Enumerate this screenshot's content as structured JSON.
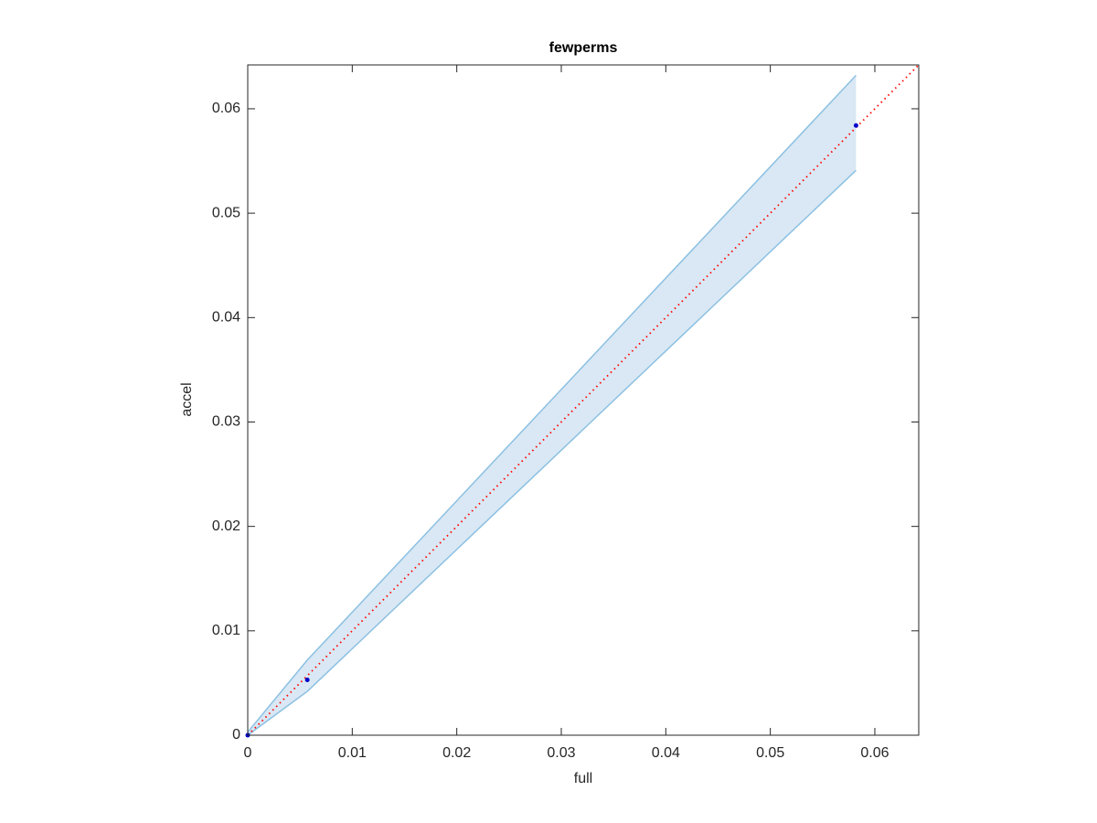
{
  "chart_data": {
    "type": "scatter",
    "title": "fewperms",
    "xlabel": "full",
    "ylabel": "accel",
    "x": [
      0,
      0.0057,
      0.0582
    ],
    "y": [
      0,
      0.0053,
      0.0584
    ],
    "lower": [
      0,
      0.0042,
      0.0541
    ],
    "upper": [
      0.0003,
      0.0072,
      0.0632
    ],
    "point_color": "#0000cc",
    "band_color": "#d9e8f4",
    "band_edge_color": "#8cc0e2",
    "diagonal": {
      "x": [
        0,
        0.0642
      ],
      "y": [
        0,
        0.0642
      ],
      "color": "#ff0000"
    },
    "xlim": [
      0,
      0.0642
    ],
    "ylim": [
      0,
      0.0642
    ],
    "xticks": [
      0,
      0.01,
      0.02,
      0.03,
      0.04,
      0.05,
      0.06
    ],
    "yticks": [
      0,
      0.01,
      0.02,
      0.03,
      0.04,
      0.05,
      0.06
    ]
  }
}
